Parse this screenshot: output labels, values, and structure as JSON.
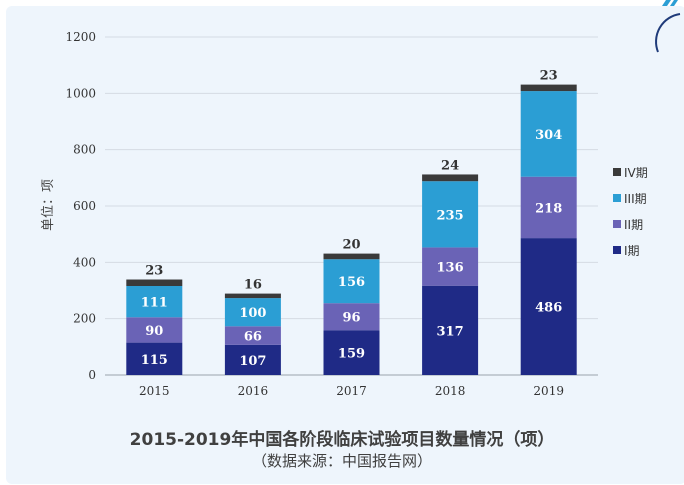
{
  "chart_data": {
    "type": "bar",
    "stacked": true,
    "title": "2015-2019年中国各阶段临床试验项目数量情况（项）",
    "subtitle": "（数据来源：中国报告网）",
    "ylabel": "单位：项",
    "xlabel": "",
    "ylim": [
      0,
      1200
    ],
    "yticks": [
      0,
      200,
      400,
      600,
      800,
      1000,
      1200
    ],
    "grid": true,
    "legend_position": "right",
    "categories": [
      "2015",
      "2016",
      "2017",
      "2018",
      "2019"
    ],
    "series": [
      {
        "name": "I期",
        "color": "#1f2a86",
        "values": [
          115,
          107,
          159,
          317,
          486
        ]
      },
      {
        "name": "II期",
        "color": "#6a63b6",
        "values": [
          90,
          66,
          96,
          136,
          218
        ]
      },
      {
        "name": "III期",
        "color": "#2b9ed4",
        "values": [
          111,
          100,
          156,
          235,
          304
        ]
      },
      {
        "name": "IV期",
        "color": "#3a3a3a",
        "values": [
          23,
          16,
          20,
          24,
          23
        ]
      }
    ]
  }
}
